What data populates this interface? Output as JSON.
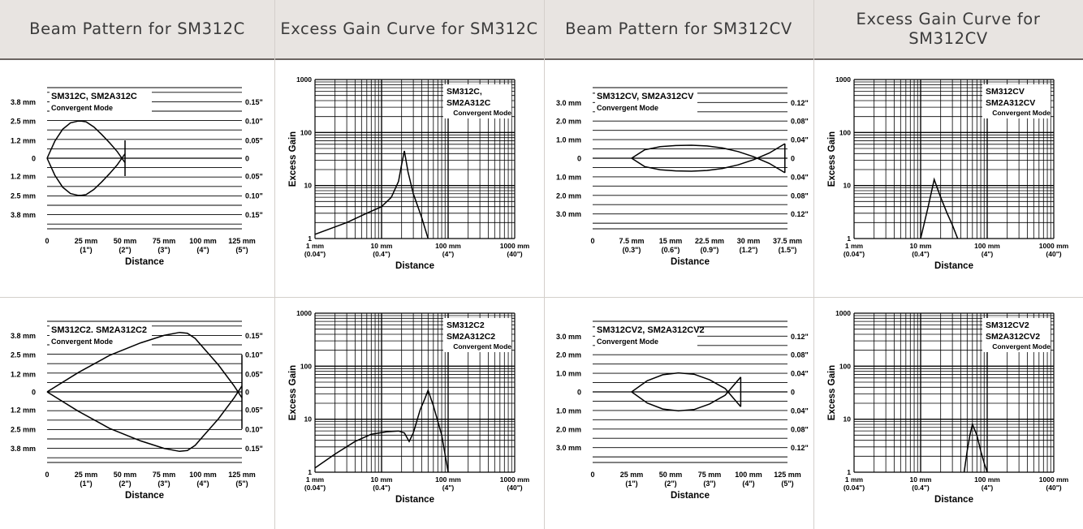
{
  "headers": [
    "Beam Pattern for SM312C",
    "Excess Gain Curve for SM312C",
    "Beam Pattern for SM312CV",
    "Excess Gain Curve for SM312CV"
  ],
  "chart_data": [
    {
      "type": "line",
      "subtype": "beam-pattern",
      "legend": [
        "SM312C, SM2A312C",
        "Convergent Mode"
      ],
      "legend_placement": "top-left",
      "xlabel": "Distance",
      "x_ticks": [
        0,
        25,
        50,
        75,
        100,
        125
      ],
      "x_tick_labels": [
        [
          "0",
          ""
        ],
        [
          "25 mm",
          "(1\")"
        ],
        [
          "50 mm",
          "(2\")"
        ],
        [
          "75 mm",
          "(3\")"
        ],
        [
          "100 mm",
          "(4\")"
        ],
        [
          "125 mm",
          "(5\")"
        ]
      ],
      "xlim": [
        0,
        125
      ],
      "ylim": [
        -4.75,
        4.75
      ],
      "y_ticks": [
        3.8,
        2.5,
        1.2,
        0,
        -1.2,
        -2.5,
        -3.8
      ],
      "y_tick_labels_left": [
        "3.8 mm",
        "2.5 mm",
        "1.2 mm",
        "0",
        "1.2 mm",
        "2.5 mm",
        "3.8 mm"
      ],
      "y_tick_labels_right": [
        "0.15\"",
        "0.10\"",
        "0.05\"",
        "0",
        "0.05\"",
        "0.10\"",
        "0.15\""
      ],
      "grid": true,
      "series": [
        {
          "x": [
            0,
            5,
            10,
            15,
            20,
            22,
            25,
            30,
            35,
            40,
            45,
            50
          ],
          "y": [
            0,
            1.15,
            1.95,
            2.38,
            2.5,
            2.5,
            2.45,
            2.1,
            1.6,
            1.05,
            0.45,
            -0.3
          ]
        },
        {
          "x": [
            0,
            5,
            10,
            15,
            20,
            22,
            25,
            30,
            35,
            40,
            45,
            50
          ],
          "y": [
            0,
            -1.15,
            -1.95,
            -2.38,
            -2.5,
            -2.5,
            -2.45,
            -2.1,
            -1.6,
            -1.05,
            -0.45,
            0.3
          ]
        },
        {
          "x": [
            50,
            50
          ],
          "y": [
            1.2,
            -1.2
          ]
        }
      ]
    },
    {
      "type": "line",
      "subtype": "excess-gain",
      "xscale": "log",
      "yscale": "log",
      "legend": [
        "SM312C,",
        "SM2A312C",
        "Convergent Mode"
      ],
      "legend_placement": "top-right",
      "xlabel": "Distance",
      "ylabel": "Excess Gain",
      "xlim": [
        1,
        1000
      ],
      "ylim": [
        1,
        1000
      ],
      "x_tick_labels": [
        [
          "1 mm",
          "(0.04\")"
        ],
        [
          "10 mm",
          "(0.4\")"
        ],
        [
          "100 mm",
          "(4\")"
        ],
        [
          "1000 mm",
          "(40\")"
        ]
      ],
      "y_tick_labels": [
        "1",
        "10",
        "100",
        "1000"
      ],
      "grid": true,
      "series": [
        {
          "x": [
            1,
            3,
            6,
            10,
            14,
            18,
            20,
            22,
            25,
            30,
            40,
            50
          ],
          "y": [
            1.2,
            2,
            3,
            4,
            6,
            12,
            25,
            45,
            18,
            7,
            2.5,
            1
          ]
        }
      ]
    },
    {
      "type": "line",
      "subtype": "beam-pattern",
      "legend": [
        "SM312CV, SM2A312CV",
        "Convergent Mode"
      ],
      "legend_placement": "top-left",
      "xlabel": "Distance",
      "x_ticks": [
        0,
        7.5,
        15,
        22.5,
        30,
        37.5
      ],
      "x_tick_labels": [
        [
          "0",
          ""
        ],
        [
          "7.5 mm",
          "(0.3\")"
        ],
        [
          "15 mm",
          "(0.6\")"
        ],
        [
          "22.5 mm",
          "(0.9\")"
        ],
        [
          "30 mm",
          "(1.2\")"
        ],
        [
          "37.5 mm",
          "(1.5\")"
        ]
      ],
      "xlim": [
        0,
        37.5
      ],
      "ylim": [
        -3.8,
        3.8
      ],
      "y_ticks": [
        3,
        2,
        1,
        0,
        -1,
        -2,
        -3
      ],
      "y_tick_labels_left": [
        "3.0 mm",
        "2.0 mm",
        "1.0 mm",
        "0",
        "1.0 mm",
        "2.0 mm",
        "3.0 mm"
      ],
      "y_tick_labels_right": [
        "0.12\"",
        "0.08\"",
        "0.04\"",
        "0",
        "0.04\"",
        "0.08\"",
        "0.12\""
      ],
      "grid": true,
      "series": [
        {
          "x": [
            7.5,
            10,
            13,
            16,
            19,
            22,
            25,
            28,
            31,
            34,
            37
          ],
          "y": [
            0,
            0.45,
            0.62,
            0.68,
            0.7,
            0.66,
            0.55,
            0.36,
            0.08,
            -0.28,
            -0.78
          ]
        },
        {
          "x": [
            7.5,
            10,
            13,
            16,
            19,
            22,
            25,
            28,
            31,
            34,
            37
          ],
          "y": [
            0,
            -0.45,
            -0.62,
            -0.68,
            -0.7,
            -0.66,
            -0.55,
            -0.36,
            -0.08,
            0.28,
            0.78
          ]
        },
        {
          "x": [
            37,
            37
          ],
          "y": [
            0.78,
            -0.78
          ]
        }
      ]
    },
    {
      "type": "line",
      "subtype": "excess-gain",
      "xscale": "log",
      "yscale": "log",
      "legend": [
        "SM312CV",
        "SM2A312CV",
        "Convergent Mode"
      ],
      "legend_placement": "top-right",
      "xlabel": "Distance",
      "ylabel": "Excess Gain",
      "xlim": [
        1,
        1000
      ],
      "ylim": [
        1,
        1000
      ],
      "x_tick_labels": [
        [
          "1 mm",
          "(0.04\")"
        ],
        [
          "10 mm",
          "(0.4\")"
        ],
        [
          "100 mm",
          "(4\")"
        ],
        [
          "1000 mm",
          "(40\")"
        ]
      ],
      "y_tick_labels": [
        "1",
        "10",
        "100",
        "1000"
      ],
      "grid": true,
      "series": [
        {
          "x": [
            10,
            13,
            16,
            20,
            25,
            30,
            36
          ],
          "y": [
            1,
            4,
            13,
            6,
            3,
            1.8,
            1
          ]
        }
      ]
    },
    {
      "type": "line",
      "subtype": "beam-pattern",
      "legend": [
        "SM312C2. SM2A312C2",
        "Convergent Mode"
      ],
      "legend_placement": "top-left",
      "xlabel": "Distance",
      "x_ticks": [
        0,
        25,
        50,
        75,
        100,
        125
      ],
      "x_tick_labels": [
        [
          "0",
          ""
        ],
        [
          "25 mm",
          "(1\")"
        ],
        [
          "50 mm",
          "(2\")"
        ],
        [
          "75 mm",
          "(3\")"
        ],
        [
          "100 mm",
          "(4\")"
        ],
        [
          "125 mm",
          "(5\")"
        ]
      ],
      "xlim": [
        0,
        125
      ],
      "ylim": [
        -4.75,
        4.75
      ],
      "y_ticks": [
        3.8,
        2.5,
        1.2,
        0,
        -1.2,
        -2.5,
        -3.8
      ],
      "y_tick_labels_left": [
        "3.8 mm",
        "2.5 mm",
        "1.2 mm",
        "0",
        "1.2 mm",
        "2.5 mm",
        "3.8 mm"
      ],
      "y_tick_labels_right": [
        "0.15\"",
        "0.10\"",
        "0.05\"",
        "0",
        "0.05\"",
        "0.10\"",
        "0.15\""
      ],
      "grid": true,
      "series": [
        {
          "x": [
            0,
            20,
            40,
            60,
            75,
            85,
            90,
            95,
            100,
            110,
            120,
            125
          ],
          "y": [
            0,
            1.3,
            2.45,
            3.3,
            3.8,
            4.0,
            3.95,
            3.6,
            3.0,
            1.8,
            0.4,
            -0.4
          ]
        },
        {
          "x": [
            0,
            20,
            40,
            60,
            75,
            85,
            90,
            95,
            100,
            110,
            120,
            125
          ],
          "y": [
            0,
            -1.3,
            -2.45,
            -3.3,
            -3.8,
            -4.0,
            -3.95,
            -3.6,
            -3.0,
            -1.8,
            -0.4,
            0.4
          ]
        },
        {
          "x": [
            125,
            125
          ],
          "y": [
            2.5,
            -2.5
          ]
        }
      ]
    },
    {
      "type": "line",
      "subtype": "excess-gain",
      "xscale": "log",
      "yscale": "log",
      "legend": [
        "SM312C2",
        "SM2A312C2",
        "Convergent Mode"
      ],
      "legend_placement": "top-right",
      "xlabel": "Distance",
      "ylabel": "Excess Gain",
      "xlim": [
        1,
        1000
      ],
      "ylim": [
        1,
        1000
      ],
      "x_tick_labels": [
        [
          "1 mm",
          "(0.04\")"
        ],
        [
          "10 mm",
          "(0.4\")"
        ],
        [
          "100 mm",
          "(4\")"
        ],
        [
          "1000 mm",
          "(40\")"
        ]
      ],
      "y_tick_labels": [
        "1",
        "10",
        "100",
        "1000"
      ],
      "grid": true,
      "series": [
        {
          "x": [
            1,
            2,
            4,
            7,
            12,
            18,
            22,
            26,
            30,
            38,
            45,
            50,
            60,
            80,
            100
          ],
          "y": [
            1.2,
            2.2,
            3.8,
            5.2,
            5.8,
            6,
            5.5,
            3.8,
            5.5,
            15,
            25,
            35,
            18,
            5,
            1
          ]
        }
      ]
    },
    {
      "type": "line",
      "subtype": "beam-pattern",
      "legend": [
        "SM312CV2, SM2A312CV2",
        "Convergent Mode"
      ],
      "legend_placement": "top-left",
      "xlabel": "Distance",
      "x_ticks": [
        0,
        25,
        50,
        75,
        100,
        125
      ],
      "x_tick_labels": [
        [
          "0",
          ""
        ],
        [
          "25 mm",
          "(1\")"
        ],
        [
          "50 mm",
          "(2\")"
        ],
        [
          "75 mm",
          "(3\")"
        ],
        [
          "100 mm",
          "(4\")"
        ],
        [
          "125 mm",
          "(5\")"
        ]
      ],
      "xlim": [
        0,
        125
      ],
      "ylim": [
        -3.8,
        3.8
      ],
      "y_ticks": [
        3,
        2,
        1,
        0,
        -1,
        -2,
        -3
      ],
      "y_tick_labels_left": [
        "3.0 mm",
        "2.0 mm",
        "1.0 mm",
        "0",
        "1.0 mm",
        "2.0 mm",
        "3.0 mm"
      ],
      "y_tick_labels_right": [
        "0.12\"",
        "0.08\"",
        "0.04\"",
        "0",
        "0.04\"",
        "0.08\"",
        "0.12\""
      ],
      "grid": true,
      "series": [
        {
          "x": [
            25,
            35,
            45,
            55,
            65,
            75,
            85,
            95
          ],
          "y": [
            0,
            0.6,
            0.92,
            1.02,
            0.95,
            0.65,
            0.18,
            -0.8
          ]
        },
        {
          "x": [
            25,
            35,
            45,
            55,
            65,
            75,
            85,
            95
          ],
          "y": [
            0,
            -0.6,
            -0.92,
            -1.02,
            -0.95,
            -0.65,
            -0.18,
            0.8
          ]
        },
        {
          "x": [
            95,
            95
          ],
          "y": [
            0.8,
            -0.8
          ]
        }
      ]
    },
    {
      "type": "line",
      "subtype": "excess-gain",
      "xscale": "log",
      "yscale": "log",
      "legend": [
        "SM312CV2",
        "SM2A312CV2",
        "Convergent Mode"
      ],
      "legend_placement": "top-right",
      "xlabel": "Distance",
      "ylabel": "Excess Gain",
      "xlim": [
        1,
        1000
      ],
      "ylim": [
        1,
        1000
      ],
      "x_tick_labels": [
        [
          "1 mm",
          "(0.04\")"
        ],
        [
          "10 mm",
          "(0.4\")"
        ],
        [
          "100 mm",
          "(4\")"
        ],
        [
          "1000 mm",
          "(40\")"
        ]
      ],
      "y_tick_labels": [
        "1",
        "10",
        "100",
        "1000"
      ],
      "grid": true,
      "series": [
        {
          "x": [
            45,
            50,
            55,
            60,
            70,
            80,
            90,
            100
          ],
          "y": [
            1,
            2.5,
            5,
            8,
            5,
            2.5,
            1.5,
            1
          ]
        }
      ]
    }
  ]
}
